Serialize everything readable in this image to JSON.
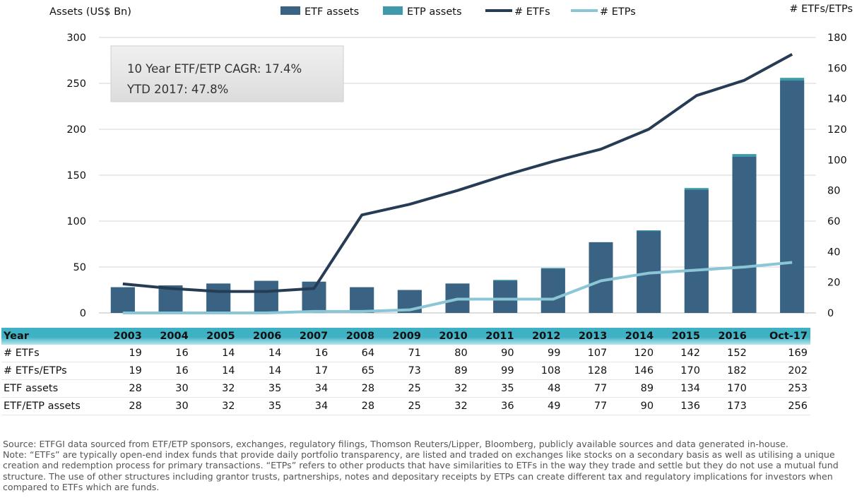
{
  "chart_data": {
    "type": "bar",
    "categories": [
      "2003",
      "2004",
      "2005",
      "2006",
      "2007",
      "2008",
      "2009",
      "2010",
      "2011",
      "2012",
      "2013",
      "2014",
      "2015",
      "2016",
      "Oct-17"
    ],
    "series": [
      {
        "name": "ETF assets",
        "type": "bar",
        "axis": "left",
        "values": [
          28,
          30,
          32,
          35,
          34,
          28,
          25,
          32,
          35,
          48,
          77,
          89,
          134,
          170,
          253
        ]
      },
      {
        "name": "ETP assets",
        "type": "bar",
        "axis": "left",
        "values": [
          28,
          30,
          32,
          35,
          34,
          28,
          25,
          32,
          36,
          49,
          77,
          90,
          136,
          173,
          256
        ]
      },
      {
        "name": "# ETFs",
        "type": "line",
        "axis": "right",
        "values": [
          19,
          16,
          14,
          14,
          16,
          64,
          71,
          80,
          90,
          99,
          107,
          120,
          142,
          152,
          169
        ]
      },
      {
        "name": "# ETPs",
        "type": "line",
        "axis": "right",
        "values": [
          0,
          0,
          0,
          0,
          1,
          1,
          2,
          9,
          9,
          9,
          21,
          26,
          28,
          30,
          33
        ]
      }
    ],
    "ylabel": "Assets (US$ Bn)",
    "y2label": "# ETFs/ETPs",
    "ylim": [
      0,
      300
    ],
    "y2lim": [
      0,
      180
    ],
    "yticks": [
      "0",
      "50",
      "100",
      "150",
      "200",
      "250",
      "300"
    ],
    "y2ticks": [
      "0",
      "20",
      "40",
      "60",
      "80",
      "100",
      "120",
      "140",
      "160",
      "180"
    ],
    "grid": true,
    "legend": "top",
    "annotation": {
      "line1": "10 Year ETF/ETP CAGR: 17.4%",
      "line2": "YTD 2017: 47.8%"
    }
  },
  "table": {
    "header": "Year",
    "rows": [
      {
        "label": "# ETFs",
        "values": [
          "19",
          "16",
          "14",
          "14",
          "16",
          "64",
          "71",
          "80",
          "90",
          "99",
          "107",
          "120",
          "142",
          "152",
          "169"
        ]
      },
      {
        "label": "# ETFs/ETPs",
        "values": [
          "19",
          "16",
          "14",
          "14",
          "17",
          "65",
          "73",
          "89",
          "99",
          "108",
          "128",
          "146",
          "170",
          "182",
          "202"
        ]
      },
      {
        "label": "ETF assets",
        "values": [
          "28",
          "30",
          "32",
          "35",
          "34",
          "28",
          "25",
          "32",
          "35",
          "48",
          "77",
          "89",
          "134",
          "170",
          "253"
        ]
      },
      {
        "label": "ETF/ETP assets",
        "values": [
          "28",
          "30",
          "32",
          "35",
          "34",
          "28",
          "25",
          "32",
          "36",
          "49",
          "77",
          "90",
          "136",
          "173",
          "256"
        ]
      }
    ]
  },
  "colors": {
    "etf_bar": "#3a6383",
    "etp_bar": "#3e9aab",
    "etf_line": "#253c54",
    "etp_line": "#8ac6d6",
    "header": "#3fb1c4"
  },
  "notes": {
    "source": "Source: ETFGI data sourced from ETF/ETP sponsors, exchanges, regulatory filings, Thomson Reuters/Lipper, Bloomberg, publicly available sources and data generated in-house.",
    "note": "Note: “ETFs” are typically open-end index funds that provide daily portfolio transparency, are listed and traded on exchanges like stocks on a secondary basis as well as utilising a unique creation and redemption process for primary transactions. “ETPs” refers to other products that have similarities to ETFs in the way they trade and settle but they do not use a mutual fund structure. The use of other structures including grantor trusts, partnerships, notes and depositary receipts by ETPs can create different tax and regulatory implications for investors when compared to ETFs which are funds."
  }
}
